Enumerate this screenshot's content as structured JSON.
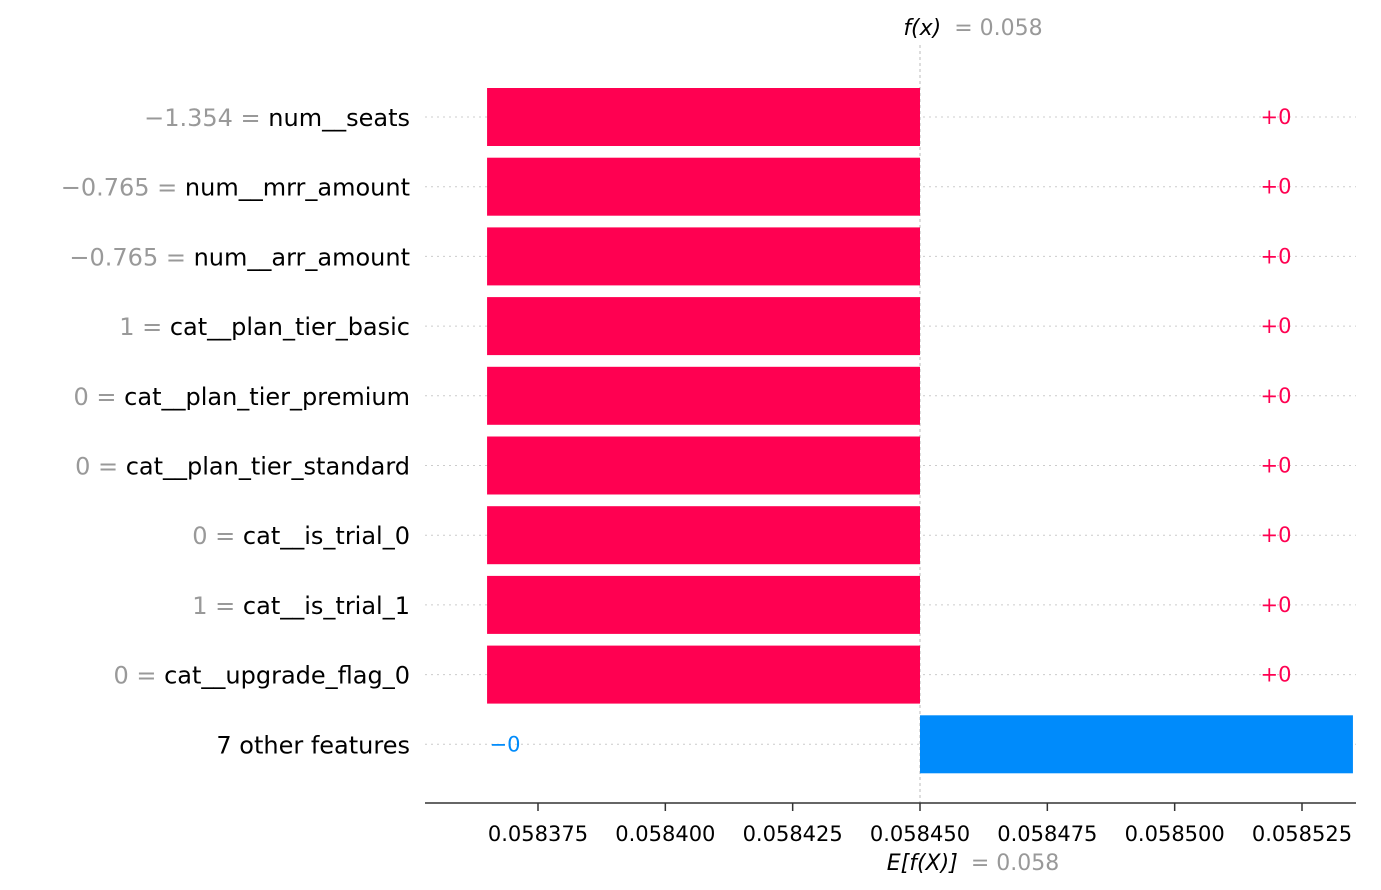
{
  "colors": {
    "positive": "#ff0051",
    "negative": "#008bfb",
    "label_gray": "#999999",
    "axis": "#333333"
  },
  "header": {
    "fx_label": "f(x)",
    "fx_value": "= 0.058"
  },
  "footer": {
    "efx_label": "E[f(X)]",
    "efx_value": "= 0.058"
  },
  "chart_data": {
    "type": "bar",
    "orientation": "horizontal",
    "subtype": "shap-waterfall",
    "base_value": 0.05845,
    "fx": 0.05845,
    "xlim": [
      0.05835,
      0.05854
    ],
    "ticks": [
      0.058375,
      0.0584,
      0.058425,
      0.05845,
      0.058475,
      0.0585,
      0.058525
    ],
    "tick_labels": [
      "0.058375",
      "0.058400",
      "0.058425",
      "0.058450",
      "0.058475",
      "0.058500",
      "0.058525"
    ],
    "bars": [
      {
        "value_text": "−1.354",
        "feature": "num__seats",
        "label": "+0",
        "start": 0.058365,
        "end": 0.05845,
        "sign": "positive"
      },
      {
        "value_text": "−0.765",
        "feature": "num__mrr_amount",
        "label": "+0",
        "start": 0.058365,
        "end": 0.05845,
        "sign": "positive"
      },
      {
        "value_text": "−0.765",
        "feature": "num__arr_amount",
        "label": "+0",
        "start": 0.058365,
        "end": 0.05845,
        "sign": "positive"
      },
      {
        "value_text": "1",
        "feature": "cat__plan_tier_basic",
        "label": "+0",
        "start": 0.058365,
        "end": 0.05845,
        "sign": "positive"
      },
      {
        "value_text": "0",
        "feature": "cat__plan_tier_premium",
        "label": "+0",
        "start": 0.058365,
        "end": 0.05845,
        "sign": "positive"
      },
      {
        "value_text": "0",
        "feature": "cat__plan_tier_standard",
        "label": "+0",
        "start": 0.058365,
        "end": 0.05845,
        "sign": "positive"
      },
      {
        "value_text": "0",
        "feature": "cat__is_trial_0",
        "label": "+0",
        "start": 0.058365,
        "end": 0.05845,
        "sign": "positive"
      },
      {
        "value_text": "1",
        "feature": "cat__is_trial_1",
        "label": "+0",
        "start": 0.058365,
        "end": 0.05845,
        "sign": "positive"
      },
      {
        "value_text": "0",
        "feature": "cat__upgrade_flag_0",
        "label": "+0",
        "start": 0.058365,
        "end": 0.05845,
        "sign": "positive"
      },
      {
        "value_text": "",
        "feature": "7 other features",
        "label": "−0",
        "start": 0.05845,
        "end": 0.058535,
        "sign": "negative"
      }
    ]
  }
}
